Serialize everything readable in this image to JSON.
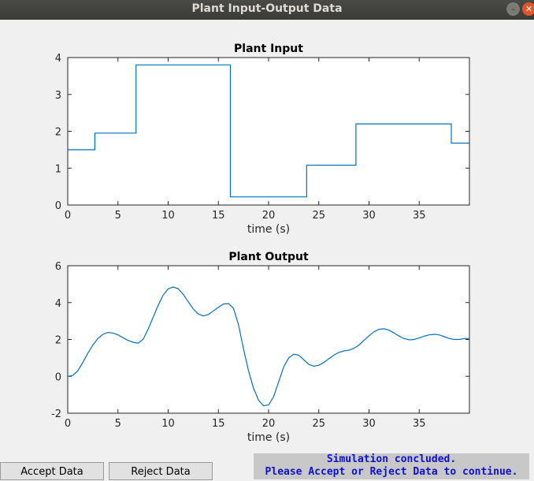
{
  "window": {
    "title": "Plant Input-Output Data"
  },
  "buttons": {
    "accept": "Accept Data",
    "reject": "Reject Data"
  },
  "status": {
    "line1": "Simulation concluded.",
    "line2": "Please Accept or Reject Data to continue."
  },
  "colors": {
    "line": "#0072bd",
    "status_text": "#1010d0",
    "close": "#e0562a"
  },
  "icons": {
    "minimize": "minimize-icon",
    "close": "close-icon"
  },
  "chart_data": [
    {
      "type": "line",
      "title": "Plant Input",
      "xlabel": "time (s)",
      "ylabel": "",
      "xlim": [
        0,
        40
      ],
      "ylim": [
        0,
        4
      ],
      "xticks": [
        0,
        5,
        10,
        15,
        20,
        25,
        30,
        35
      ],
      "yticks": [
        0,
        1,
        2,
        3,
        4
      ],
      "step": true,
      "x": [
        0,
        2.7,
        6.8,
        16.2,
        23.8,
        28.7,
        38.2,
        40
      ],
      "y": [
        1.5,
        1.95,
        3.8,
        0.22,
        1.08,
        2.2,
        1.68,
        1.68
      ]
    },
    {
      "type": "line",
      "title": "Plant Output",
      "xlabel": "time (s)",
      "ylabel": "",
      "xlim": [
        0,
        40
      ],
      "ylim": [
        -2,
        6
      ],
      "xticks": [
        0,
        5,
        10,
        15,
        20,
        25,
        30,
        35
      ],
      "yticks": [
        -2,
        0,
        2,
        4,
        6
      ],
      "step": false,
      "x": [
        0,
        0.5,
        1,
        1.5,
        2,
        2.5,
        3,
        3.5,
        4,
        4.5,
        5,
        5.5,
        6,
        6.5,
        7,
        7.5,
        8,
        8.5,
        9,
        9.5,
        10,
        10.5,
        11,
        11.5,
        12,
        12.5,
        13,
        13.5,
        14,
        14.5,
        15,
        15.5,
        16,
        16.5,
        17,
        17.5,
        18,
        18.5,
        19,
        19.5,
        20,
        20.5,
        21,
        21.5,
        22,
        22.5,
        23,
        23.5,
        24,
        24.5,
        25,
        25.5,
        26,
        26.5,
        27,
        27.5,
        28,
        28.5,
        29,
        29.5,
        30,
        30.5,
        31,
        31.5,
        32,
        32.5,
        33,
        33.5,
        34,
        34.5,
        35,
        35.5,
        36,
        36.5,
        37,
        37.5,
        38,
        38.5,
        39,
        39.5,
        40
      ],
      "y": [
        0,
        0.05,
        0.3,
        0.75,
        1.25,
        1.7,
        2.05,
        2.28,
        2.38,
        2.35,
        2.25,
        2.1,
        1.95,
        1.85,
        1.8,
        2.0,
        2.55,
        3.2,
        3.85,
        4.4,
        4.75,
        4.85,
        4.75,
        4.45,
        4.05,
        3.65,
        3.38,
        3.28,
        3.35,
        3.55,
        3.75,
        3.92,
        3.95,
        3.7,
        2.8,
        1.5,
        0.3,
        -0.65,
        -1.3,
        -1.6,
        -1.55,
        -1.1,
        -0.3,
        0.5,
        1.0,
        1.2,
        1.15,
        0.9,
        0.65,
        0.55,
        0.6,
        0.75,
        0.95,
        1.15,
        1.3,
        1.38,
        1.42,
        1.52,
        1.7,
        1.95,
        2.2,
        2.42,
        2.55,
        2.58,
        2.5,
        2.35,
        2.18,
        2.05,
        1.98,
        2.0,
        2.08,
        2.18,
        2.25,
        2.28,
        2.25,
        2.15,
        2.05,
        2.0,
        2.0,
        2.05,
        2.05
      ]
    }
  ]
}
